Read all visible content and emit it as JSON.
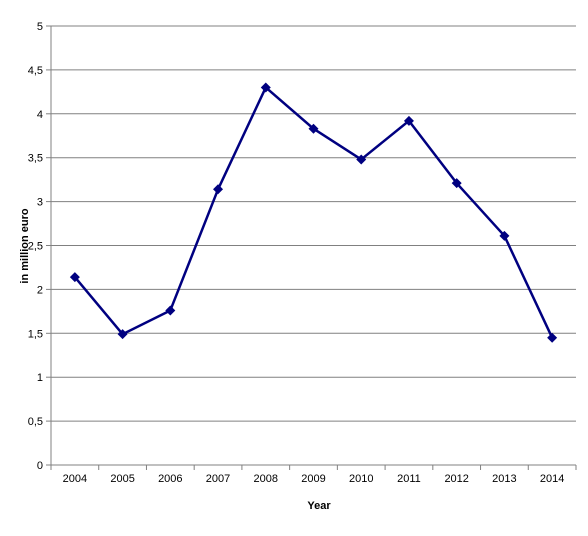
{
  "chart_data": {
    "type": "line",
    "title": "",
    "xlabel": "Year",
    "ylabel": "in million  euro",
    "categories": [
      "2004",
      "2005",
      "2006",
      "2007",
      "2008",
      "2009",
      "2010",
      "2011",
      "2012",
      "2013",
      "2014"
    ],
    "ylim": [
      0,
      5
    ],
    "yticks": [
      0,
      0.5,
      1,
      1.5,
      2,
      2.5,
      3,
      3.5,
      4,
      4.5,
      5
    ],
    "ytick_labels": [
      "0",
      "0,5",
      "1",
      "1,5",
      "2",
      "2,5",
      "3",
      "3,5",
      "4",
      "4,5",
      "5"
    ],
    "grid": true,
    "legend": "none",
    "series": [
      {
        "values": [
          2.14,
          1.49,
          1.76,
          3.14,
          4.3,
          3.83,
          3.48,
          3.92,
          3.21,
          2.61,
          1.45
        ],
        "color": "#000080",
        "marker": "diamond"
      }
    ]
  }
}
